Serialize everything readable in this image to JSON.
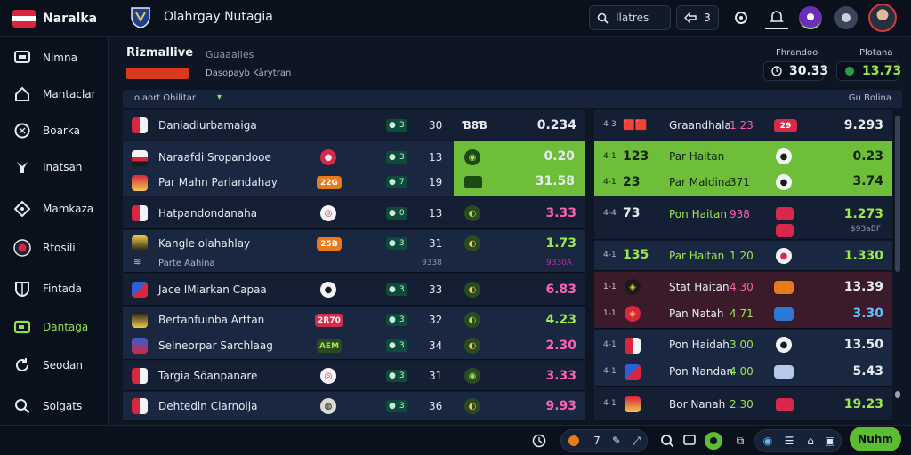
{
  "header": {
    "brand": "Naralka",
    "title": "Olahrgay Nutagia",
    "search_label": "Ilatres",
    "counter": "3"
  },
  "sidebar": {
    "items": [
      {
        "label": "Nimna",
        "icon": "screen-icon"
      },
      {
        "label": "Mantaclar",
        "icon": "home-icon"
      },
      {
        "label": "Boarka",
        "icon": "ball-icon"
      },
      {
        "label": "Inatsan",
        "icon": "pin-icon"
      },
      {
        "label": "Mamkaza",
        "icon": "diamond-icon"
      },
      {
        "label": "Rtosili",
        "icon": "live-icon"
      },
      {
        "label": "Fintada",
        "icon": "shield-icon"
      },
      {
        "label": "Dantaga",
        "icon": "ticket-icon"
      },
      {
        "label": "Seodan",
        "icon": "refresh-icon"
      },
      {
        "label": "Solgats",
        "icon": "search-icon"
      }
    ],
    "active_index": 7
  },
  "section": {
    "title": "Rizmallive",
    "alt": "Guaaalies",
    "subtitle": "Dasopayb Kārytran"
  },
  "odds_header": {
    "left_label": "Fhrandoo",
    "left_value": "30.33",
    "right_label": "Plotana",
    "right_value": "13.73"
  },
  "filter": {
    "label": "Iolaort Ohilitar",
    "right": "Gu Bolina"
  },
  "left_rows": [
    {
      "team": "Daniadiurbamaiga",
      "score": "3",
      "num": "30",
      "tag": "Ɓ8Ɓ",
      "odd": "0.234",
      "odd_color": "#e6ebf2",
      "pill": "",
      "pill_color": ""
    },
    {
      "team": "Naraafdi Sropandooe",
      "score": "3",
      "num": "13",
      "tag": "",
      "odd": "0.20",
      "odd_color": "#10240a",
      "pill": "",
      "pill_color": "#d6294b"
    },
    {
      "team": "Par Mahn Parlandahay",
      "score": "7",
      "num": "19",
      "tag": "",
      "odd": "31.58",
      "odd_color": "#10240a",
      "pill": "22G",
      "pill_color": "#e87a1c"
    },
    {
      "team": "Hatpandondanaha",
      "score": "0",
      "num": "13",
      "tag": "",
      "odd": "3.33",
      "odd_color": "#ff5fb4",
      "pill": "",
      "pill_color": "#d6294b"
    },
    {
      "team": "Kangle olahahlay",
      "score": "3",
      "num": "31",
      "tag": "",
      "odd": "1.73",
      "odd_color": "#9be84f",
      "pill": "25B",
      "pill_color": "#e87a1c"
    },
    {
      "team": "Parte Aahina",
      "score": "",
      "num": "9338",
      "tag": "",
      "odd": "9330A",
      "odd_color": "#b5339e",
      "pill": "",
      "pill_color": ""
    },
    {
      "team": "Jace IMiarkan Capaa",
      "score": "3",
      "num": "33",
      "tag": "",
      "odd": "6.83",
      "odd_color": "#ff5fb4",
      "pill": "",
      "pill_color": ""
    },
    {
      "team": "Bertanfuinba Arttan",
      "score": "3",
      "num": "32",
      "tag": "",
      "odd": "4.23",
      "odd_color": "#9be84f",
      "pill": "2R70",
      "pill_color": "#d6294b"
    },
    {
      "team": "Selneorpar Sarchlaag",
      "score": "3",
      "num": "34",
      "tag": "",
      "odd": "2.30",
      "odd_color": "#ff5fb4",
      "pill": "AEM",
      "pill_color": "#2b4a22"
    },
    {
      "team": "Targia Sōanpanare",
      "score": "3",
      "num": "31",
      "tag": "",
      "odd": "3.33",
      "odd_color": "#ff5fb4",
      "pill": "",
      "pill_color": "#d6294b"
    },
    {
      "team": "Dehtedin Clarnolja",
      "score": "3",
      "num": "36",
      "tag": "",
      "odd": "9.93",
      "odd_color": "#ff5fb4",
      "pill": "",
      "pill_color": ""
    }
  ],
  "right_rows": [
    {
      "min": "4-3",
      "num": "",
      "team": "Graandhala",
      "time": "1.23",
      "pill": "29",
      "pill_color": "#d6294b",
      "odd": "9.293",
      "odd_color": "#e6ebf2"
    },
    {
      "min": "4-1",
      "num": "123",
      "team": "Par Haitan",
      "time": "",
      "pill": "",
      "pill_color": "#f2f4f8",
      "odd": "0.23",
      "odd_color": "#10240a"
    },
    {
      "min": "4-1",
      "num": "23",
      "team": "Par Maldina",
      "time": "371",
      "pill": "",
      "pill_color": "#f2f4f8",
      "odd": "3.74",
      "odd_color": "#10240a"
    },
    {
      "min": "4-4",
      "num": "73",
      "team": "Pon Haitan",
      "time": "938",
      "pill": "",
      "pill_color": "#d6294b",
      "odd": "1.273",
      "odd_color": "#9be84f"
    },
    {
      "min": "",
      "num": "",
      "team": "",
      "time": "",
      "pill": "",
      "pill_color": "#d6294b",
      "odd": "$93aBF",
      "odd_color": "#8d98aa"
    },
    {
      "min": "4-1",
      "num": "135",
      "team": "Par Haitan",
      "time": "1.20",
      "pill": "",
      "pill_color": "#f2f4f8",
      "odd": "1.330",
      "odd_color": "#9be84f"
    },
    {
      "min": "1-1",
      "num": "",
      "team": "Stat Haitan",
      "time": "4.30",
      "pill": "",
      "pill_color": "#e87a1c",
      "odd": "13.39",
      "odd_color": "#e6ebf2"
    },
    {
      "min": "1-1",
      "num": "",
      "team": "Pan Natah",
      "time": "4.71",
      "pill": "",
      "pill_color": "#2c78d8",
      "odd": "3.30",
      "odd_color": "#5bc0ff"
    },
    {
      "min": "4-1",
      "num": "",
      "team": "Pon Haidah",
      "time": "3.00",
      "pill": "",
      "pill_color": "#f2f4f8",
      "odd": "13.50",
      "odd_color": "#e6ebf2"
    },
    {
      "min": "4-1",
      "num": "",
      "team": "Pon Nandan",
      "time": "4.00",
      "pill": "",
      "pill_color": "#b8c8e8",
      "odd": "5.43",
      "odd_color": "#e6ebf2"
    },
    {
      "min": "4-1",
      "num": "",
      "team": "Bor Nanah",
      "time": "2.30",
      "pill": "",
      "pill_color": "#d6294b",
      "odd": "19.23",
      "odd_color": "#9be84f"
    }
  ],
  "bottom": {
    "group_a": "7",
    "cta_label": "Nuhm"
  },
  "colors": {
    "accent_green": "#6ebe3a",
    "brand_red": "#d7263d",
    "bg": "#0e1624"
  }
}
